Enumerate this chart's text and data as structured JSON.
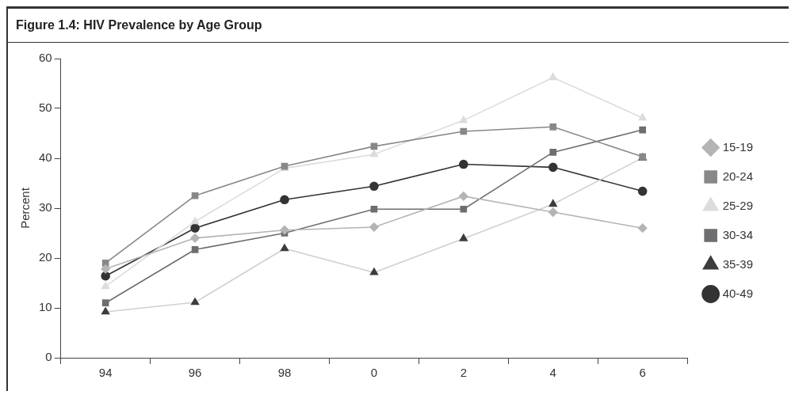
{
  "chart_data": {
    "type": "line",
    "title": "Figure 1.4: HIV Prevalence by Age Group",
    "ylabel": "Percent",
    "categories": [
      "94",
      "96",
      "98",
      "0",
      "2",
      "4",
      "6"
    ],
    "ylim": [
      0,
      60
    ],
    "yticks": [
      0,
      10,
      20,
      30,
      40,
      50,
      60
    ],
    "grid": false,
    "legend": "right",
    "series": [
      {
        "name": "15-19",
        "color": "#b4b4b4",
        "marker": "diamond",
        "values": [
          17.8,
          24,
          25.6,
          26.2,
          32.4,
          29.2,
          26
        ]
      },
      {
        "name": "20-24",
        "color": "#888888",
        "marker": "square",
        "values": [
          19,
          32.5,
          38.4,
          42.4,
          45.4,
          46.3,
          40.3
        ]
      },
      {
        "name": "25-29",
        "color": "#dcdcdc",
        "marker": "triangle",
        "values": [
          14.3,
          27.3,
          38,
          40.8,
          47.6,
          56.2,
          48.1
        ]
      },
      {
        "name": "30-34",
        "color": "#6e6e72",
        "marker": "square",
        "values": [
          11,
          21.7,
          25,
          29.8,
          29.8,
          41.2,
          45.7
        ]
      },
      {
        "name": "35-39",
        "color": "#d0d0d0",
        "marker": "triangle",
        "colors": [
          "#3c3c3c",
          "#3c3c3c",
          "#3c3c3c",
          "#3c3c3c",
          "#3c3c3c",
          "#3c3c3c",
          "#3c3c3c"
        ],
        "values": [
          9.2,
          11.1,
          21.9,
          17.1,
          23.9,
          30.8,
          40.1
        ]
      },
      {
        "name": "40-49",
        "color": "#333333",
        "marker": "circle",
        "values": [
          16.4,
          26,
          31.7,
          34.4,
          38.8,
          38.2,
          33.4
        ]
      }
    ]
  }
}
